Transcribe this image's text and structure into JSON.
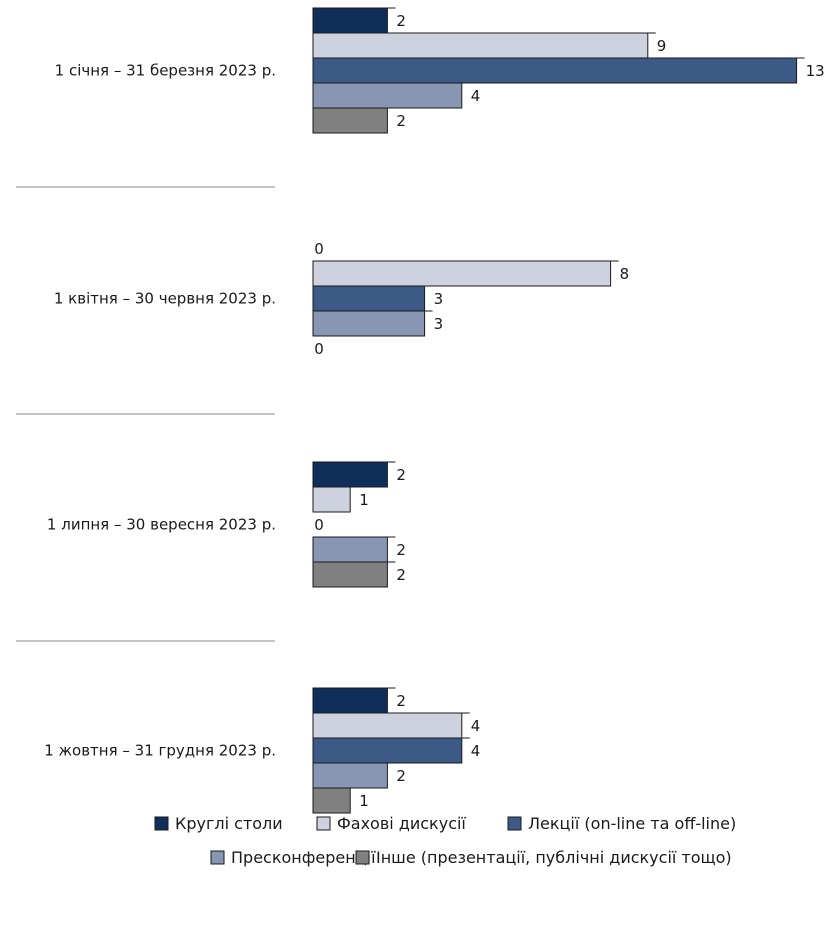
{
  "chart_data": {
    "type": "bar",
    "orientation": "horizontal",
    "categories": [
      "1 січня – 31 березня 2023 р.",
      "1 квітня – 30 червня 2023 р.",
      "1 липня – 30 вересня 2023 р.",
      "1 жовтня – 31 грудня 2023 р."
    ],
    "series": [
      {
        "name": "Круглі столи",
        "color": "#0f2e5a",
        "values": [
          2,
          0,
          2,
          2
        ]
      },
      {
        "name": "Фахові дискусії",
        "color": "#cdd2de",
        "values": [
          9,
          8,
          1,
          4
        ]
      },
      {
        "name": "Лекції (on-line та off-line)",
        "color": "#3c5a85",
        "values": [
          13,
          3,
          0,
          4
        ]
      },
      {
        "name": "Пресконференції",
        "color": "#8796b3",
        "values": [
          4,
          3,
          2,
          2
        ]
      },
      {
        "name": "Інше (презентації, публічні дискусії тощо)",
        "color": "#808080",
        "values": [
          2,
          0,
          2,
          1
        ]
      }
    ],
    "xlim": [
      0,
      13
    ],
    "grid": false,
    "legend_position": "bottom"
  }
}
